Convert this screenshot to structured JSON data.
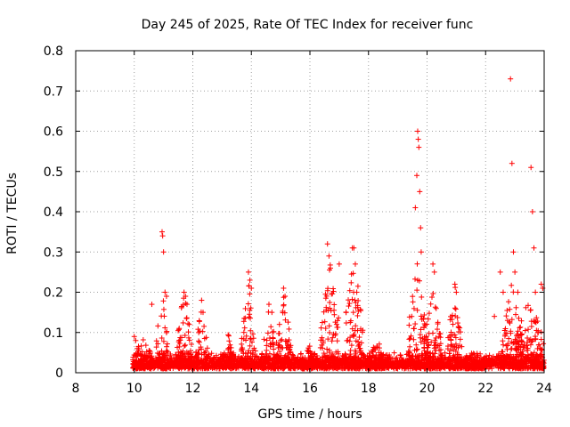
{
  "chart_data": {
    "type": "scatter",
    "title": "Day 245 of 2025, Rate Of TEC Index for receiver func",
    "xlabel": "GPS time / hours",
    "ylabel": "ROTI / TECUs",
    "xlim": [
      8,
      24
    ],
    "ylim": [
      0,
      0.8
    ],
    "x_ticks": [
      8,
      10,
      12,
      14,
      16,
      18,
      20,
      22,
      24
    ],
    "y_ticks": [
      0,
      0.1,
      0.2,
      0.3,
      0.4,
      0.5,
      0.6,
      0.7,
      0.8
    ],
    "x_tick_labels": [
      "8",
      "10",
      "12",
      "14",
      "16",
      "18",
      "20",
      "22",
      "24"
    ],
    "y_tick_labels": [
      "0",
      "0.1",
      "0.2",
      "0.3",
      "0.4",
      "0.5",
      "0.6",
      "0.7",
      "0.8"
    ],
    "grid": true,
    "marker": "+",
    "color": "#ff0000",
    "data_range_hours": [
      9.95,
      24.0
    ],
    "baseline_level": [
      0.01,
      0.05
    ],
    "series": [
      {
        "name": "ROTI",
        "points": [
          [
            10.0,
            0.09
          ],
          [
            10.05,
            0.08
          ],
          [
            10.1,
            0.06
          ],
          [
            10.6,
            0.17
          ],
          [
            10.95,
            0.35
          ],
          [
            10.97,
            0.34
          ],
          [
            11.0,
            0.3
          ],
          [
            11.05,
            0.2
          ],
          [
            11.1,
            0.19
          ],
          [
            11.7,
            0.2
          ],
          [
            11.75,
            0.19
          ],
          [
            11.8,
            0.17
          ],
          [
            12.3,
            0.18
          ],
          [
            12.35,
            0.15
          ],
          [
            13.9,
            0.25
          ],
          [
            13.95,
            0.23
          ],
          [
            14.0,
            0.21
          ],
          [
            14.6,
            0.17
          ],
          [
            14.7,
            0.15
          ],
          [
            15.1,
            0.21
          ],
          [
            15.15,
            0.19
          ],
          [
            16.6,
            0.32
          ],
          [
            16.65,
            0.29
          ],
          [
            16.7,
            0.26
          ],
          [
            17.0,
            0.27
          ],
          [
            17.45,
            0.31
          ],
          [
            17.5,
            0.31
          ],
          [
            17.55,
            0.27
          ],
          [
            17.6,
            0.2
          ],
          [
            19.6,
            0.41
          ],
          [
            19.65,
            0.49
          ],
          [
            19.68,
            0.6
          ],
          [
            19.7,
            0.58
          ],
          [
            19.72,
            0.56
          ],
          [
            19.75,
            0.45
          ],
          [
            19.78,
            0.36
          ],
          [
            19.8,
            0.3
          ],
          [
            20.2,
            0.27
          ],
          [
            20.25,
            0.25
          ],
          [
            20.95,
            0.22
          ],
          [
            21.0,
            0.2
          ],
          [
            22.3,
            0.14
          ],
          [
            22.5,
            0.25
          ],
          [
            22.6,
            0.2
          ],
          [
            22.85,
            0.73
          ],
          [
            22.9,
            0.52
          ],
          [
            22.95,
            0.3
          ],
          [
            23.0,
            0.25
          ],
          [
            23.1,
            0.2
          ],
          [
            23.55,
            0.51
          ],
          [
            23.6,
            0.4
          ],
          [
            23.65,
            0.31
          ],
          [
            23.7,
            0.2
          ],
          [
            23.9,
            0.22
          ],
          [
            23.95,
            0.21
          ]
        ]
      }
    ],
    "activity_clusters": [
      {
        "center": 10.3,
        "width": 0.35,
        "peak": 0.08
      },
      {
        "center": 10.95,
        "width": 0.2,
        "peak": 0.2
      },
      {
        "center": 11.7,
        "width": 0.3,
        "peak": 0.19
      },
      {
        "center": 12.3,
        "width": 0.2,
        "peak": 0.17
      },
      {
        "center": 13.2,
        "width": 0.2,
        "peak": 0.09
      },
      {
        "center": 13.9,
        "width": 0.25,
        "peak": 0.22
      },
      {
        "center": 14.6,
        "width": 0.25,
        "peak": 0.16
      },
      {
        "center": 15.1,
        "width": 0.25,
        "peak": 0.2
      },
      {
        "center": 16.0,
        "width": 0.3,
        "peak": 0.06
      },
      {
        "center": 16.7,
        "width": 0.35,
        "peak": 0.27
      },
      {
        "center": 17.5,
        "width": 0.35,
        "peak": 0.28
      },
      {
        "center": 18.3,
        "width": 0.4,
        "peak": 0.07
      },
      {
        "center": 19.7,
        "width": 0.35,
        "peak": 0.3
      },
      {
        "center": 20.2,
        "width": 0.3,
        "peak": 0.2
      },
      {
        "center": 20.95,
        "width": 0.25,
        "peak": 0.21
      },
      {
        "center": 21.6,
        "width": 0.4,
        "peak": 0.04
      },
      {
        "center": 22.9,
        "width": 0.35,
        "peak": 0.22
      },
      {
        "center": 23.5,
        "width": 0.5,
        "peak": 0.2
      }
    ]
  }
}
